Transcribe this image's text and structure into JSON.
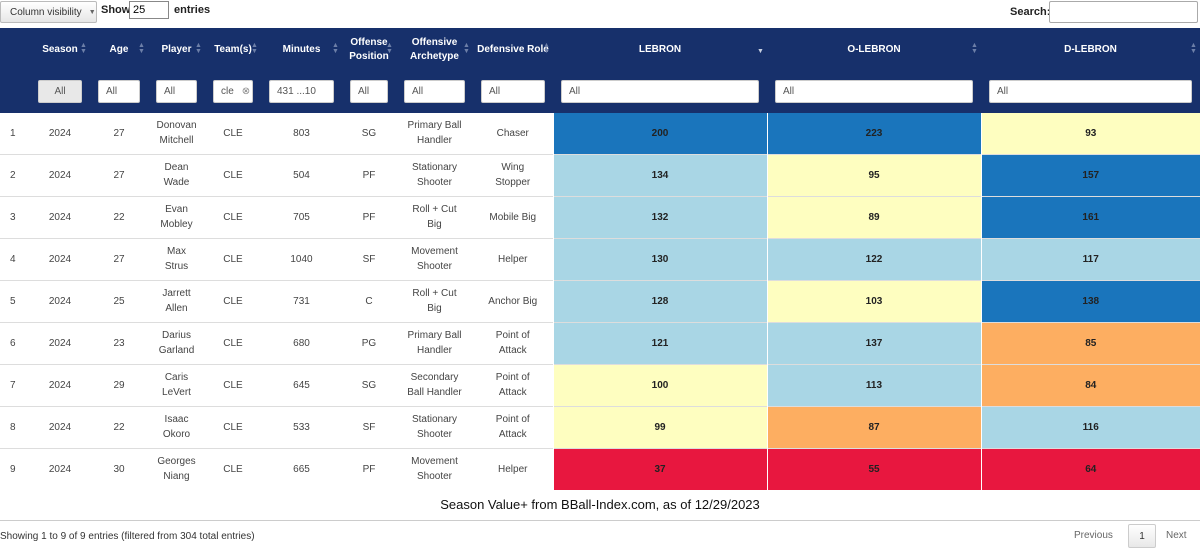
{
  "controls": {
    "colvis_label": "Column visibility",
    "show_label": "Show",
    "show_value": "25",
    "entries_label": "entries",
    "search_label": "Search:",
    "search_value": ""
  },
  "columns": [
    {
      "key": "idx",
      "label": ""
    },
    {
      "key": "season",
      "label": "Season"
    },
    {
      "key": "age",
      "label": "Age"
    },
    {
      "key": "player",
      "label": "Player"
    },
    {
      "key": "team",
      "label": "Team(s)"
    },
    {
      "key": "minutes",
      "label": "Minutes"
    },
    {
      "key": "offpos",
      "label": "Offense Position"
    },
    {
      "key": "offarch",
      "label": "Offensive Archetype"
    },
    {
      "key": "defrole",
      "label": "Defensive Role"
    },
    {
      "key": "lebron",
      "label": "LEBRON"
    },
    {
      "key": "olebron",
      "label": "O-LEBRON"
    },
    {
      "key": "dlebron",
      "label": "D-LEBRON"
    }
  ],
  "filters": {
    "season": "All",
    "age": "All",
    "player": "All",
    "team": "cle",
    "minutes": "431 ...10",
    "offpos": "All",
    "offarch": "All",
    "defrole": "All",
    "lebron": "All",
    "olebron": "All",
    "dlebron": "All"
  },
  "colors": {
    "header_bg": "#17306b",
    "dark_blue": "#1a75bc",
    "light_blue": "#a9d6e5",
    "light_yellow": "#fefec0",
    "orange": "#fdae61",
    "red": "#e8173f"
  },
  "rows": [
    {
      "idx": "1",
      "season": "2024",
      "age": "27",
      "player": [
        "Donovan",
        "Mitchell"
      ],
      "team": "CLE",
      "minutes": "803",
      "offpos": "SG",
      "offarch": [
        "Primary Ball",
        "Handler"
      ],
      "defrole": [
        "Chaser"
      ],
      "lebron": "200",
      "olebron": "223",
      "dlebron": "93",
      "colors": [
        "dark_blue",
        "dark_blue",
        "light_yellow"
      ]
    },
    {
      "idx": "2",
      "season": "2024",
      "age": "27",
      "player": [
        "Dean",
        "Wade"
      ],
      "team": "CLE",
      "minutes": "504",
      "offpos": "PF",
      "offarch": [
        "Stationary",
        "Shooter"
      ],
      "defrole": [
        "Wing",
        "Stopper"
      ],
      "lebron": "134",
      "olebron": "95",
      "dlebron": "157",
      "colors": [
        "light_blue",
        "light_yellow",
        "dark_blue"
      ]
    },
    {
      "idx": "3",
      "season": "2024",
      "age": "22",
      "player": [
        "Evan",
        "Mobley"
      ],
      "team": "CLE",
      "minutes": "705",
      "offpos": "PF",
      "offarch": [
        "Roll + Cut",
        "Big"
      ],
      "defrole": [
        "Mobile Big"
      ],
      "lebron": "132",
      "olebron": "89",
      "dlebron": "161",
      "colors": [
        "light_blue",
        "light_yellow",
        "dark_blue"
      ]
    },
    {
      "idx": "4",
      "season": "2024",
      "age": "27",
      "player": [
        "Max",
        "Strus"
      ],
      "team": "CLE",
      "minutes": "1040",
      "offpos": "SF",
      "offarch": [
        "Movement",
        "Shooter"
      ],
      "defrole": [
        "Helper"
      ],
      "lebron": "130",
      "olebron": "122",
      "dlebron": "117",
      "colors": [
        "light_blue",
        "light_blue",
        "light_blue"
      ]
    },
    {
      "idx": "5",
      "season": "2024",
      "age": "25",
      "player": [
        "Jarrett",
        "Allen"
      ],
      "team": "CLE",
      "minutes": "731",
      "offpos": "C",
      "offarch": [
        "Roll + Cut",
        "Big"
      ],
      "defrole": [
        "Anchor Big"
      ],
      "lebron": "128",
      "olebron": "103",
      "dlebron": "138",
      "colors": [
        "light_blue",
        "light_yellow",
        "dark_blue"
      ]
    },
    {
      "idx": "6",
      "season": "2024",
      "age": "23",
      "player": [
        "Darius",
        "Garland"
      ],
      "team": "CLE",
      "minutes": "680",
      "offpos": "PG",
      "offarch": [
        "Primary Ball",
        "Handler"
      ],
      "defrole": [
        "Point of",
        "Attack"
      ],
      "lebron": "121",
      "olebron": "137",
      "dlebron": "85",
      "colors": [
        "light_blue",
        "light_blue",
        "orange"
      ]
    },
    {
      "idx": "7",
      "season": "2024",
      "age": "29",
      "player": [
        "Caris",
        "LeVert"
      ],
      "team": "CLE",
      "minutes": "645",
      "offpos": "SG",
      "offarch": [
        "Secondary",
        "Ball Handler"
      ],
      "defrole": [
        "Point of",
        "Attack"
      ],
      "lebron": "100",
      "olebron": "113",
      "dlebron": "84",
      "colors": [
        "light_yellow",
        "light_blue",
        "orange"
      ]
    },
    {
      "idx": "8",
      "season": "2024",
      "age": "22",
      "player": [
        "Isaac",
        "Okoro"
      ],
      "team": "CLE",
      "minutes": "533",
      "offpos": "SF",
      "offarch": [
        "Stationary",
        "Shooter"
      ],
      "defrole": [
        "Point of",
        "Attack"
      ],
      "lebron": "99",
      "olebron": "87",
      "dlebron": "116",
      "colors": [
        "light_yellow",
        "orange",
        "light_blue"
      ]
    },
    {
      "idx": "9",
      "season": "2024",
      "age": "30",
      "player": [
        "Georges",
        "Niang"
      ],
      "team": "CLE",
      "minutes": "665",
      "offpos": "PF",
      "offarch": [
        "Movement",
        "Shooter"
      ],
      "defrole": [
        "Helper"
      ],
      "lebron": "37",
      "olebron": "55",
      "dlebron": "64",
      "colors": [
        "red",
        "red",
        "red"
      ]
    }
  ],
  "caption": "Season Value+ from BBall-Index.com, as of 12/29/2023",
  "footer": {
    "info": "Showing 1 to 9 of 9 entries (filtered from 304 total entries)",
    "previous": "Previous",
    "page": "1",
    "next": "Next"
  }
}
